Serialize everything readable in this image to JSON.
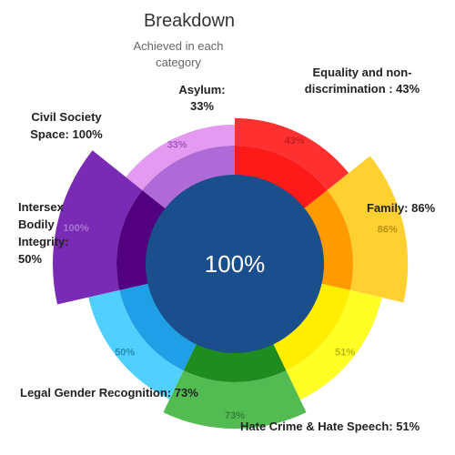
{
  "chart_data": {
    "type": "pie",
    "subtype": "rose",
    "title": "Breakdown",
    "subtitle": [
      "Achieved in each",
      "category"
    ],
    "center_value": "100%",
    "center_color": "#1a4f8c",
    "categories": [
      {
        "name": "Equality and non-discrimination",
        "value": 43,
        "value_label": "43%",
        "label_lines": [
          "Equality and non-",
          "discrimination : 43%"
        ],
        "outer_color": "#ff3030",
        "inner_color": "#ff1a1a",
        "text_color": "#9b1010"
      },
      {
        "name": "Family",
        "value": 86,
        "value_label": "86%",
        "label_lines": [
          "Family: 86%"
        ],
        "outer_color": "#ffd030",
        "inner_color": "#ff9a00",
        "text_color": "#8a6a00"
      },
      {
        "name": "Hate Crime & Hate Speech",
        "value": 51,
        "value_label": "51%",
        "label_lines": [
          "Hate Crime & Hate Speech: 51%"
        ],
        "outer_color": "#ffff26",
        "inner_color": "#ffee00",
        "text_color": "#8a8a00"
      },
      {
        "name": "Legal Gender Recognition",
        "value": 73,
        "value_label": "73%",
        "label_lines": [
          "Legal Gender Recognition: 73%"
        ],
        "outer_color": "#52bb52",
        "inner_color": "#1f8c1f",
        "text_color": "#1e5e1e"
      },
      {
        "name": "Intersex Bodily Integrity",
        "value": 50,
        "value_label": "50%",
        "label_lines": [
          "Intersex",
          "Bodily",
          "Integrity:",
          "50%"
        ],
        "outer_color": "#4fd0ff",
        "inner_color": "#1e9fe6",
        "text_color": "#0e5d86"
      },
      {
        "name": "Civil Society Space",
        "value": 100,
        "value_label": "100%",
        "label_lines": [
          "Civil Society",
          "Space: 100%"
        ],
        "outer_color": "#7a2bb5",
        "inner_color": "#520080",
        "text_color": "#c9a5e8"
      },
      {
        "name": "Asylum",
        "value": 33,
        "value_label": "33%",
        "label_lines": [
          "Asylum:",
          "33%"
        ],
        "outer_color": "#e49af0",
        "inner_color": "#b06ad8",
        "text_color": "#7a2b9a"
      }
    ]
  }
}
